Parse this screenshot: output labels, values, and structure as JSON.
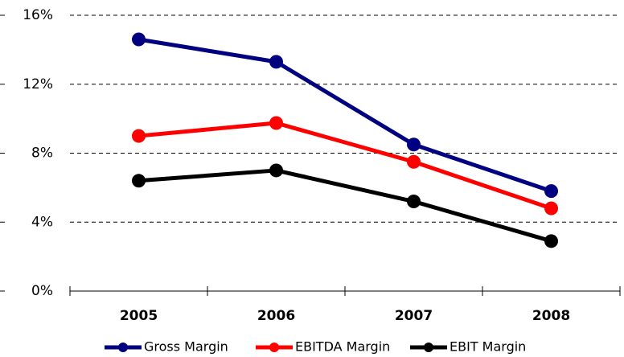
{
  "chart_data": {
    "type": "line",
    "categories": [
      "2005",
      "2006",
      "2007",
      "2008"
    ],
    "series": [
      {
        "name": "Gross Margin",
        "color": "#000080",
        "values": [
          14.6,
          13.3,
          8.5,
          5.8
        ]
      },
      {
        "name": "EBITDA Margin",
        "color": "#ff0000",
        "values": [
          9.0,
          9.75,
          7.5,
          4.8
        ]
      },
      {
        "name": "EBIT Margin",
        "color": "#000000",
        "values": [
          6.4,
          7.0,
          5.2,
          2.9
        ]
      }
    ],
    "ylim": [
      0,
      16
    ],
    "yticks": [
      {
        "value": 0,
        "label": "0%"
      },
      {
        "value": 4,
        "label": "4%"
      },
      {
        "value": 8,
        "label": "8%"
      },
      {
        "value": 12,
        "label": "12%"
      },
      {
        "value": 16,
        "label": "16%"
      }
    ],
    "grid": true,
    "legend": "bottom"
  }
}
